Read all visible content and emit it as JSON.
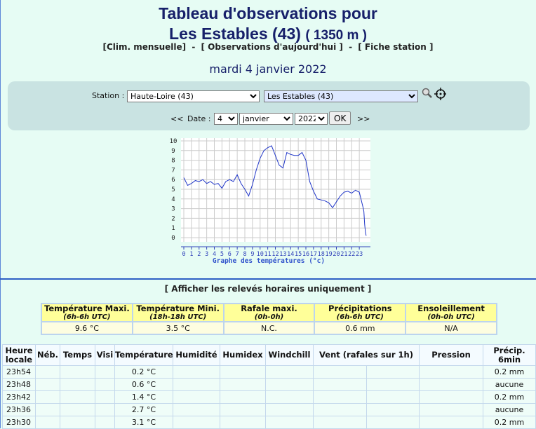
{
  "header": {
    "title_line1": "Tableau d'observations pour",
    "station_name": "Les Estables (43)",
    "altitude": "( 1350 m )"
  },
  "nav": {
    "items": [
      "[Clim. mensuelle]",
      "[ Observations d'aujourd'hui ]",
      "[ Fiche station ]"
    ],
    "separator": "-"
  },
  "date_heading": "mardi 4 janvier 2022",
  "form": {
    "station_label": "Station :",
    "department": "Haute-Loire (43)",
    "station": "Les Estables (43)",
    "prev": "<<",
    "date_label": "Date :",
    "day": "4",
    "month": "janvier",
    "year": "2022",
    "ok": "OK",
    "next": ">>"
  },
  "chart_data": {
    "type": "line",
    "xlabel": "Graphe des températures (°c)",
    "x": [
      0,
      0.5,
      1,
      1.5,
      2,
      2.5,
      3,
      3.5,
      4,
      4.5,
      5,
      5.5,
      6,
      6.5,
      7,
      7.5,
      8,
      8.5,
      9,
      9.5,
      10,
      10.5,
      11,
      11.5,
      12,
      12.5,
      13,
      13.5,
      14,
      14.5,
      15,
      15.5,
      16,
      16.5,
      17,
      17.5,
      18,
      18.5,
      19,
      19.5,
      20,
      20.5,
      21,
      21.5,
      22,
      22.5,
      23,
      23.5,
      23.6,
      23.7,
      23.8,
      23.9
    ],
    "series": [
      {
        "color": "#1f35c8",
        "values": [
          6.2,
          5.4,
          5.6,
          5.9,
          5.8,
          6.0,
          5.6,
          5.8,
          5.5,
          5.6,
          5.1,
          5.8,
          6.0,
          5.8,
          6.5,
          5.6,
          5.0,
          4.3,
          5.5,
          7.0,
          8.2,
          9.0,
          9.3,
          9.5,
          8.5,
          7.5,
          7.2,
          8.8,
          8.6,
          8.5,
          8.5,
          8.8,
          8.0,
          5.8,
          4.8,
          4.0,
          3.9,
          3.8,
          3.6,
          3.1,
          3.7,
          4.3,
          4.7,
          4.8,
          4.6,
          4.9,
          4.7,
          3.1,
          2.7,
          1.4,
          0.6,
          0.2
        ]
      }
    ],
    "xlim": [
      0,
      24
    ],
    "ylim": [
      0,
      10
    ],
    "xticks": [
      0,
      1,
      2,
      3,
      4,
      5,
      6,
      7,
      8,
      9,
      10,
      11,
      12,
      13,
      14,
      15,
      16,
      17,
      18,
      19,
      20,
      21,
      22,
      23
    ],
    "yticks": [
      0,
      1,
      2,
      3,
      4,
      5,
      6,
      7,
      8,
      9,
      10
    ],
    "grid": true
  },
  "show_hourly": "[ Afficher les relevés horaires uniquement ]",
  "summary": [
    {
      "title": "Température Maxi.",
      "sub": "(6h-6h UTC)",
      "value": "9.6 °C"
    },
    {
      "title": "Température Mini.",
      "sub": "(18h-18h UTC)",
      "value": "3.5 °C"
    },
    {
      "title": "Rafale maxi.",
      "sub": "(0h-0h)",
      "value": "N.C."
    },
    {
      "title": "Précipitations",
      "sub": "(6h-6h UTC)",
      "value": "0.6 mm"
    },
    {
      "title": "Ensoleillement",
      "sub": "(0h-0h UTC)",
      "value": "N/A"
    }
  ],
  "obs": {
    "headers": [
      "Heure locale",
      "Néb.",
      "Temps",
      "Visi",
      "Température",
      "Humidité",
      "Humidex",
      "Windchill",
      "Vent (rafales sur 1h)",
      "Pression",
      "Précip. 6min"
    ],
    "rows": [
      {
        "time": "23h54",
        "temperature": "0.2 °C",
        "precip": "0.2 mm"
      },
      {
        "time": "23h48",
        "temperature": "0.6 °C",
        "precip": "aucune"
      },
      {
        "time": "23h42",
        "temperature": "1.4 °C",
        "precip": "0.2 mm"
      },
      {
        "time": "23h36",
        "temperature": "2.7 °C",
        "precip": "aucune"
      },
      {
        "time": "23h30",
        "temperature": "3.1 °C",
        "precip": "0.2 mm"
      }
    ]
  }
}
